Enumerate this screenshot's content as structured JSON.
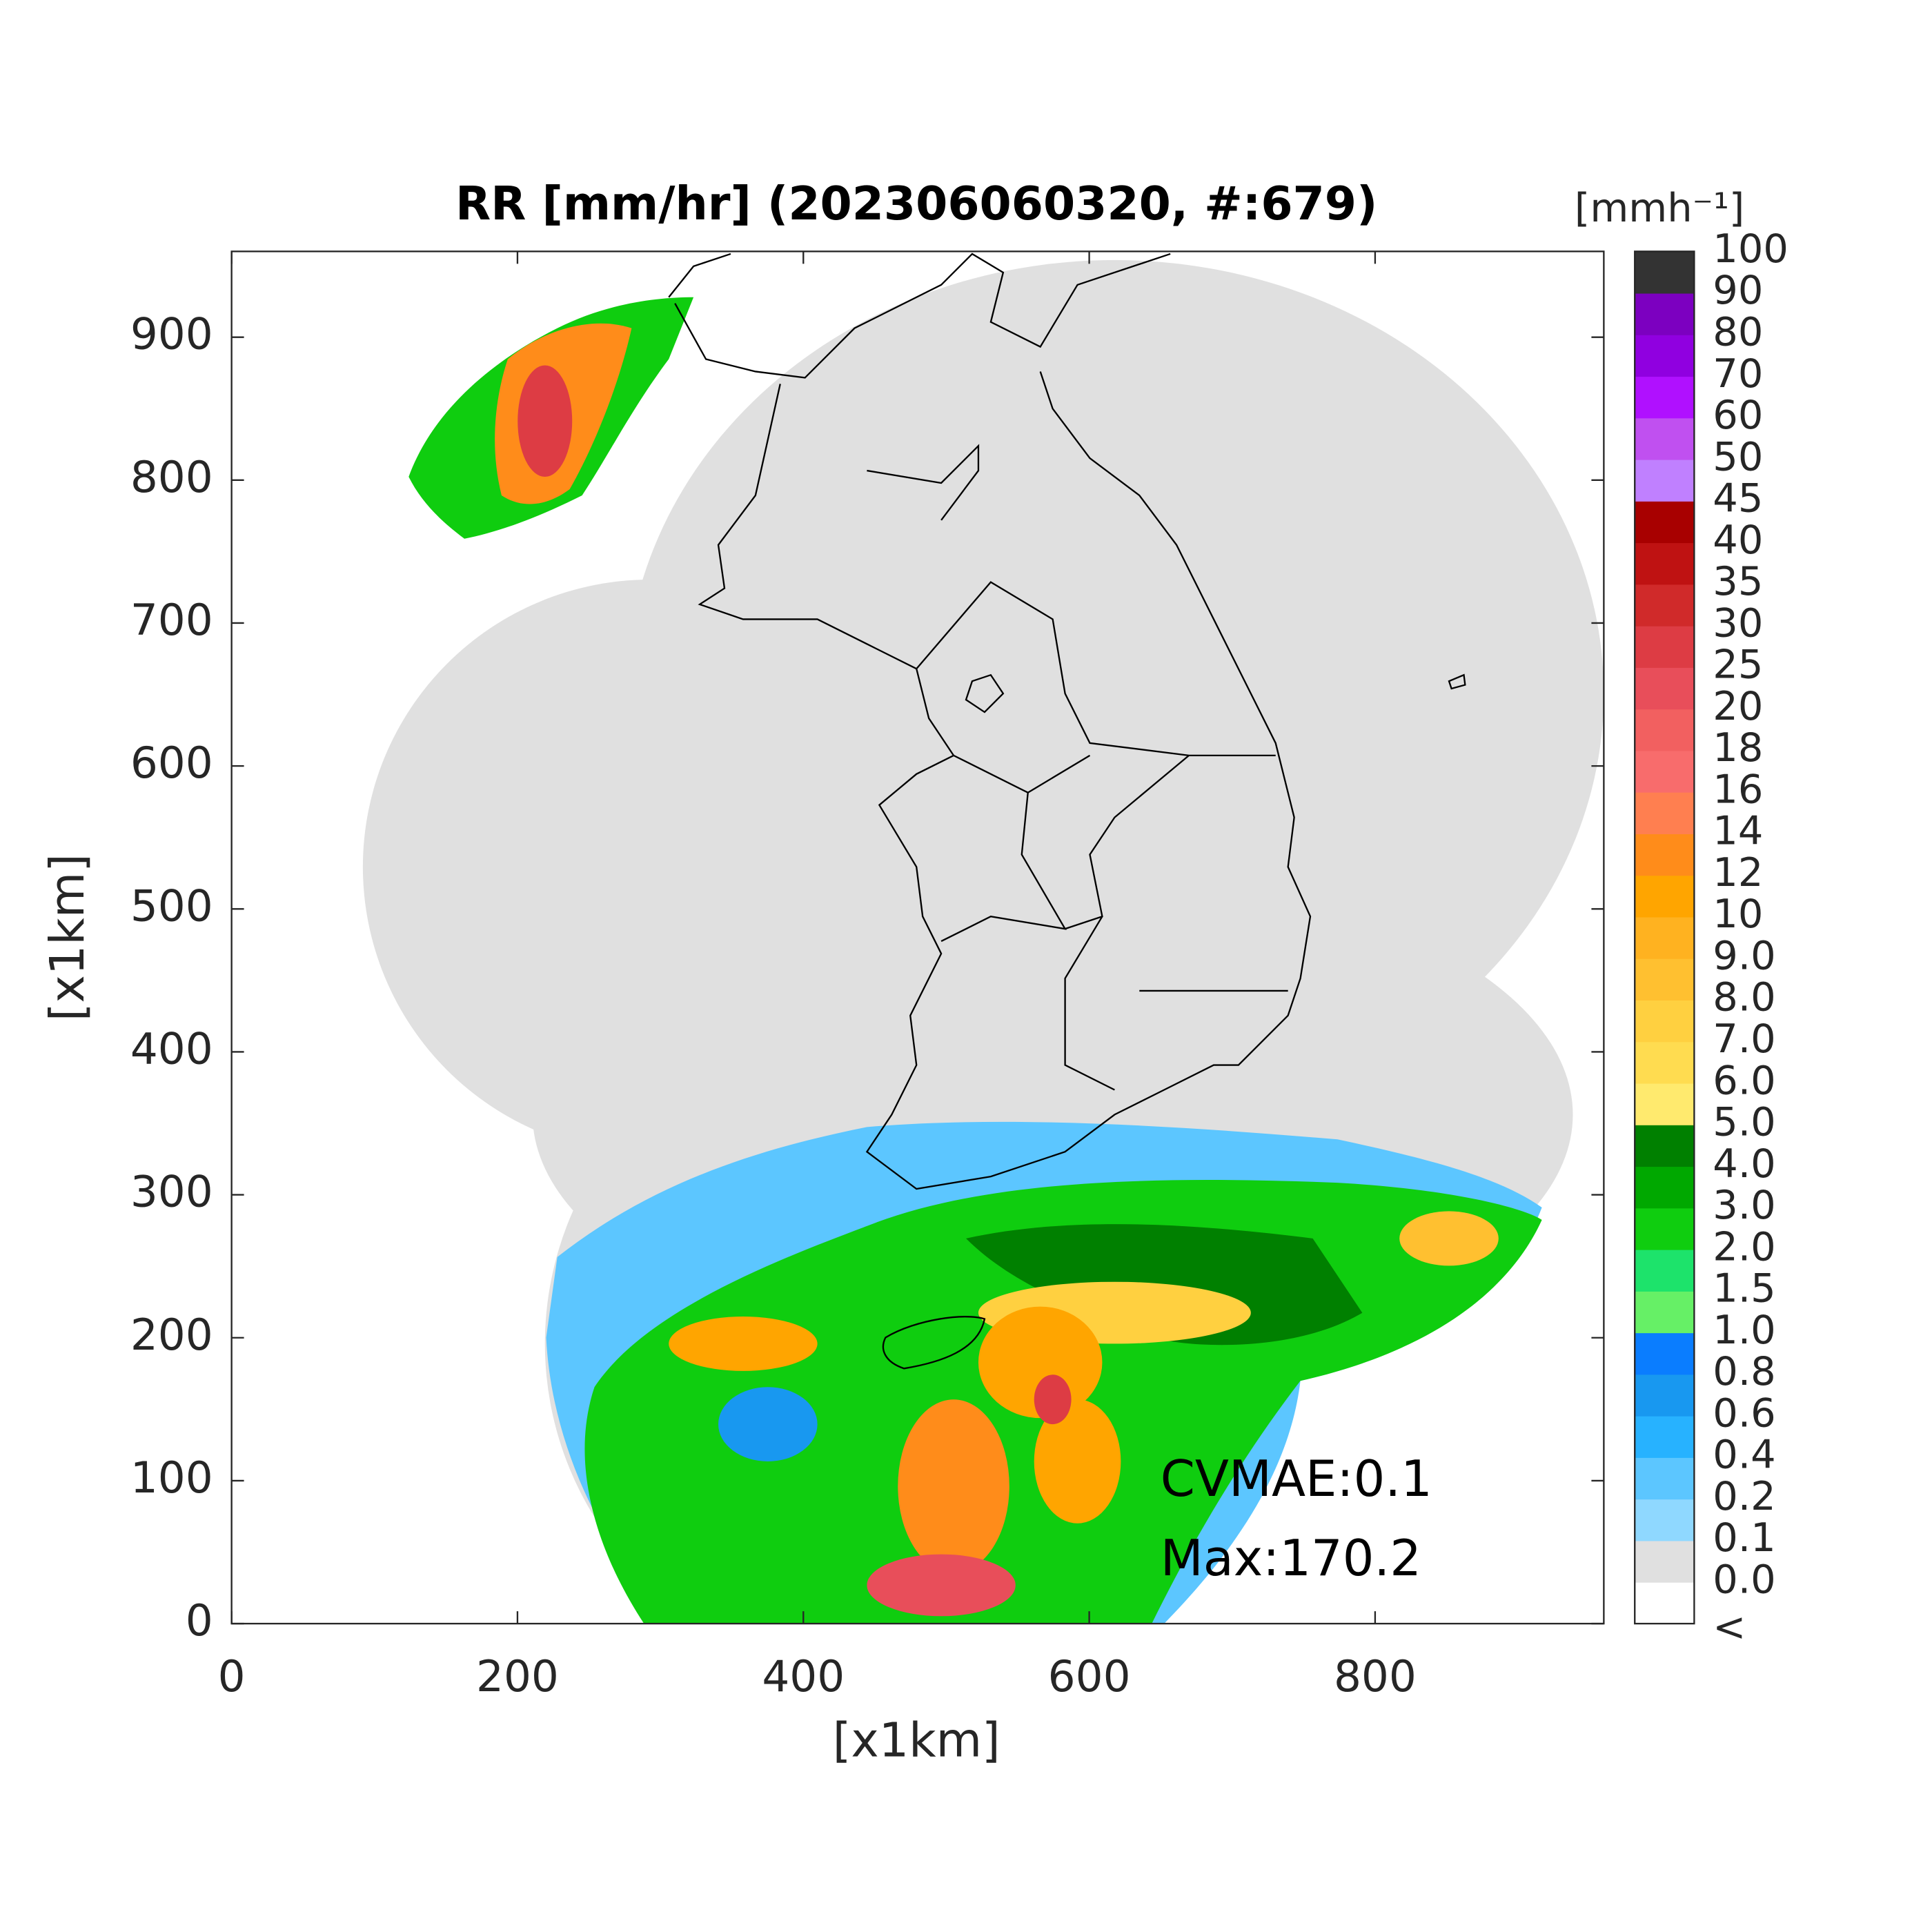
{
  "chart_data": {
    "type": "map",
    "title": "RR [mm/hr] (202306060320, #:679)",
    "xlabel": "[x1km]",
    "ylabel": "[x1km]",
    "xlim": [
      0,
      960
    ],
    "ylim": [
      0,
      960
    ],
    "xticks": [
      0,
      200,
      400,
      600,
      800
    ],
    "yticks": [
      0,
      100,
      200,
      300,
      400,
      500,
      600,
      700,
      800,
      900
    ],
    "annotations": [
      "CVMAE:0.1",
      "Max:170.2"
    ],
    "colorbar": {
      "title": "[mmh⁻¹]",
      "labels": [
        "<",
        "0.0",
        "0.1",
        "0.2",
        "0.4",
        "0.6",
        "0.8",
        "1.0",
        "1.5",
        "2.0",
        "3.0",
        "4.0",
        "5.0",
        "6.0",
        "7.0",
        "8.0",
        "9.0",
        "10",
        "12",
        "14",
        "16",
        "18",
        "20",
        "25",
        "30",
        "35",
        "40",
        "45",
        "50",
        "60",
        "70",
        "80",
        "90",
        "100"
      ],
      "colors": [
        "#ffffff",
        "#e0e0e0",
        "#8fd8ff",
        "#5cc6ff",
        "#27b2ff",
        "#1898f0",
        "#0a7dff",
        "#66f066",
        "#1de36b",
        "#0fcd0f",
        "#00a800",
        "#008000",
        "#ffea6e",
        "#ffdc50",
        "#ffd040",
        "#ffc030",
        "#ffb220",
        "#ffa500",
        "#ff8c1a",
        "#ff7f50",
        "#f86c6c",
        "#f26060",
        "#e84e5a",
        "#dd3c44",
        "#d02a2a",
        "#bf1212",
        "#a80000",
        "#c080ff",
        "#c050f0",
        "#b010ff",
        "#9000e0",
        "#7c00c0",
        "#333333"
      ]
    }
  }
}
